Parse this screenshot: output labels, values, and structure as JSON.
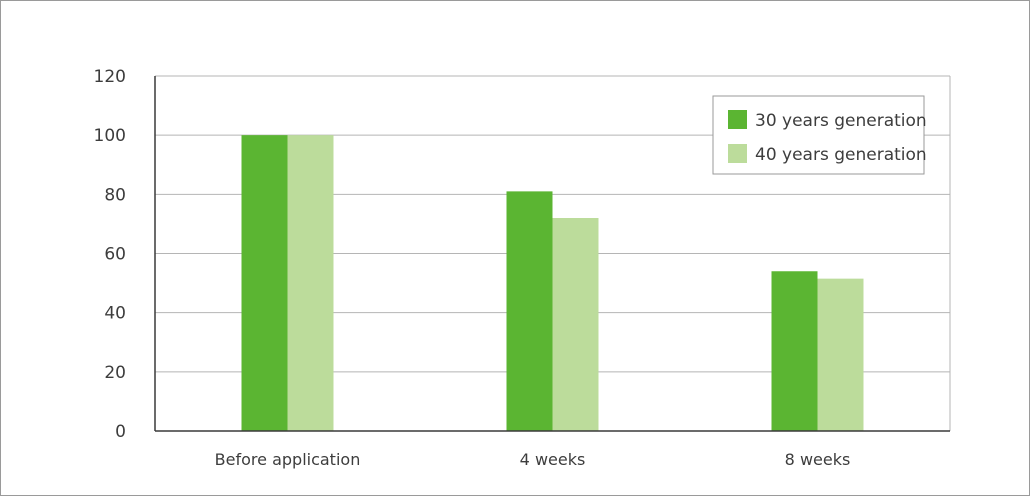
{
  "chart_data": {
    "type": "bar",
    "categories": [
      "Before application",
      "4 weeks",
      "8 weeks"
    ],
    "series": [
      {
        "name": "30 years generation",
        "values": [
          100,
          81,
          54
        ],
        "color": "#5bb532"
      },
      {
        "name": "40 years generation",
        "values": [
          100,
          72,
          51.5
        ],
        "color": "#bcdc9b"
      }
    ],
    "ylim": [
      0,
      120
    ],
    "yticks": [
      0,
      20,
      40,
      60,
      80,
      100,
      120
    ],
    "grid": true,
    "legend_position": "top-right"
  }
}
